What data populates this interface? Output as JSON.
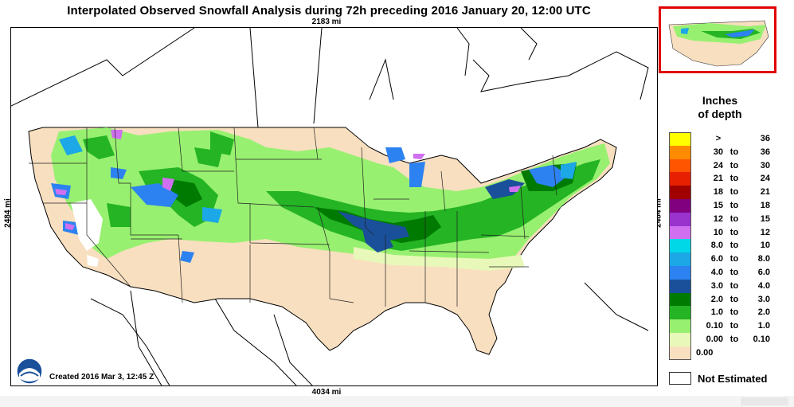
{
  "title": "Interpolated Observed Snowfall Analysis during 72h preceding 2016 January 20, 12:00 UTC",
  "dimensions": {
    "top": "2183 mi",
    "bottom": "4034 mi",
    "left": "2484 mi",
    "right": "2484 mi"
  },
  "created": "Created 2016 Mar 3, 12:45 Z",
  "logo_text": "NOAA",
  "legend": {
    "title_line1": "Inches",
    "title_line2": "of depth",
    "to_word": "to",
    "items": [
      {
        "lo": ">",
        "hi": "36",
        "color": "#ffff00"
      },
      {
        "lo": "30",
        "hi": "36",
        "color": "#ff8c00"
      },
      {
        "lo": "24",
        "hi": "30",
        "color": "#ff5500"
      },
      {
        "lo": "21",
        "hi": "24",
        "color": "#e62000"
      },
      {
        "lo": "18",
        "hi": "21",
        "color": "#a00000"
      },
      {
        "lo": "15",
        "hi": "18",
        "color": "#800080"
      },
      {
        "lo": "12",
        "hi": "15",
        "color": "#9a32cd"
      },
      {
        "lo": "10",
        "hi": "12",
        "color": "#d070f0"
      },
      {
        "lo": "8.0",
        "hi": "10",
        "color": "#00d8e8"
      },
      {
        "lo": "6.0",
        "hi": "8.0",
        "color": "#1ca8e6"
      },
      {
        "lo": "4.0",
        "hi": "6.0",
        "color": "#2c82f0"
      },
      {
        "lo": "3.0",
        "hi": "4.0",
        "color": "#1a4f9a"
      },
      {
        "lo": "2.0",
        "hi": "3.0",
        "color": "#007a00"
      },
      {
        "lo": "1.0",
        "hi": "2.0",
        "color": "#24b424"
      },
      {
        "lo": "0.10",
        "hi": "1.0",
        "color": "#98f070"
      },
      {
        "lo": "0.00",
        "hi": "0.10",
        "color": "#e8f8b8"
      },
      {
        "lo": "0.00",
        "hi": "",
        "color": "#f8dfc0"
      }
    ]
  },
  "not_estimated": "Not Estimated",
  "colors": {
    "no_snow": "#f8dfc0",
    "trace": "#e8f8b8",
    "light": "#98f070",
    "moderate": "#24b424",
    "heavy": "#007a00",
    "deep_blue": "#1a4f9a",
    "blue": "#2c82f0",
    "cyan": "#1ca8e6",
    "violet": "#d070f0",
    "inset_border": "#e00000"
  }
}
